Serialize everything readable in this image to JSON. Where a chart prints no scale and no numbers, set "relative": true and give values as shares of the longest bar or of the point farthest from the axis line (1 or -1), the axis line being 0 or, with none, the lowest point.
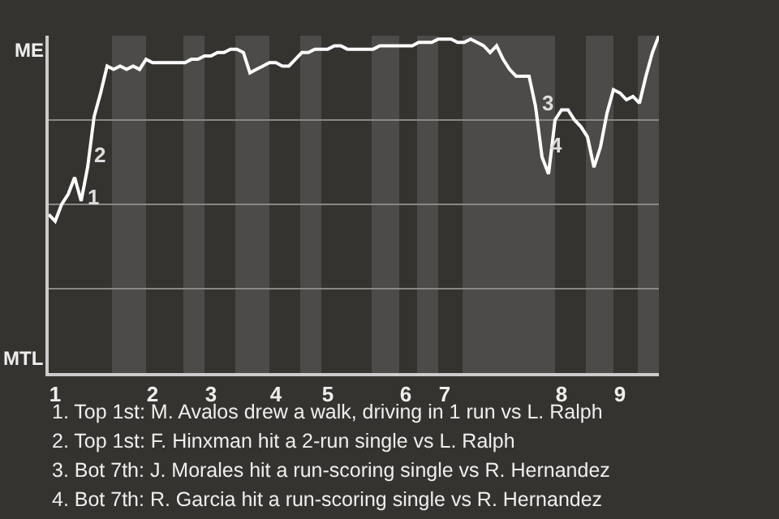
{
  "chart_data": {
    "type": "line",
    "relative": true,
    "categories": [
      null,
      "1",
      null,
      null,
      null,
      null,
      null,
      null,
      null,
      null,
      null,
      null,
      null,
      null,
      null,
      null,
      "2",
      null,
      null,
      null,
      null,
      null,
      null,
      null,
      null,
      "3",
      null,
      null,
      null,
      null,
      null,
      null,
      null,
      null,
      null,
      "4",
      null,
      null,
      null,
      null,
      null,
      null,
      null,
      "5",
      null,
      null,
      null,
      null,
      null,
      null,
      null,
      null,
      null,
      null,
      null,
      "6",
      null,
      null,
      null,
      null,
      null,
      "7",
      null,
      null,
      null,
      null,
      null,
      null,
      null,
      null,
      null,
      null,
      null,
      null,
      null,
      null,
      null,
      null,
      null,
      "8",
      null,
      null,
      null,
      null,
      null,
      null,
      null,
      null,
      "9",
      null,
      null,
      null,
      null,
      null,
      null
    ],
    "series": [
      {
        "color": "#ffffff",
        "values": [
          0.47,
          0.45,
          0.5,
          0.53,
          0.58,
          0.51,
          0.61,
          0.76,
          0.83,
          0.91,
          0.9,
          0.91,
          0.9,
          0.91,
          0.9,
          0.93,
          0.92,
          0.92,
          0.92,
          0.92,
          0.92,
          0.92,
          0.93,
          0.93,
          0.94,
          0.94,
          0.95,
          0.95,
          0.96,
          0.96,
          0.95,
          0.89,
          0.9,
          0.91,
          0.92,
          0.92,
          0.91,
          0.91,
          0.93,
          0.95,
          0.95,
          0.96,
          0.96,
          0.96,
          0.97,
          0.97,
          0.96,
          0.96,
          0.96,
          0.96,
          0.96,
          0.97,
          0.97,
          0.97,
          0.97,
          0.97,
          0.97,
          0.98,
          0.98,
          0.98,
          0.99,
          0.99,
          0.99,
          0.98,
          0.98,
          0.99,
          0.98,
          0.97,
          0.95,
          0.97,
          0.93,
          0.9,
          0.88,
          0.88,
          0.88,
          0.79,
          0.64,
          0.59,
          0.75,
          0.78,
          0.78,
          0.75,
          0.73,
          0.7,
          0.61,
          0.67,
          0.77,
          0.84,
          0.83,
          0.81,
          0.82,
          0.8,
          0.88,
          0.95,
          1.0
        ]
      }
    ],
    "grid": "y",
    "marker": "none",
    "line_style": "solid",
    "annotations": [
      "ME",
      "MTL",
      "1",
      "2",
      "3",
      "4",
      "1. Top 1st: M. Avalos drew a walk, driving in 1 run vs L. Ralph",
      "2. Top 1st: F. Hinxman hit a 2-run single vs L. Ralph",
      "3. Bot 7th: J. Morales hit a run-scoring single vs R. Hernandez",
      "4. Bot 7th: R. Garcia hit a run-scoring single vs R. Hernandez"
    ]
  }
}
